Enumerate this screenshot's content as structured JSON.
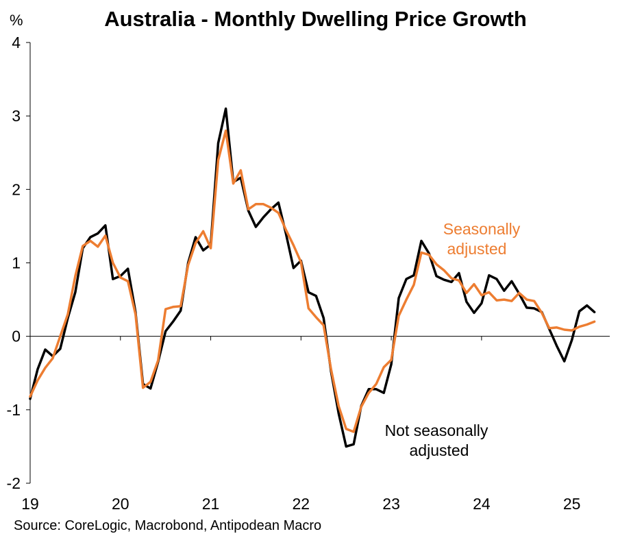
{
  "chart_data": {
    "type": "line",
    "title": "Australia - Monthly Dwelling Price Growth",
    "ylabel": "%",
    "source": "Source: CoreLogic, Macrobond, Antipodean Macro",
    "ylim": [
      -2,
      4
    ],
    "yticks": [
      4,
      3,
      2,
      1,
      0,
      -1,
      -2
    ],
    "ytick_labels": [
      "4",
      "3",
      "2",
      "1",
      "0",
      "-1",
      "-2"
    ],
    "xlim": [
      2019.0,
      2025.42
    ],
    "xticks": [
      2019,
      2020,
      2021,
      2022,
      2023,
      2024,
      2025
    ],
    "xtick_labels": [
      "19",
      "20",
      "21",
      "22",
      "23",
      "24",
      "25"
    ],
    "grid": false,
    "zero_line": true,
    "colors": {
      "nsa": "#000000",
      "sa": "#ED7D31"
    },
    "annotations": {
      "sa": [
        "Seasonally",
        "adjusted"
      ],
      "nsa": [
        "Not seasonally",
        "adjusted"
      ]
    },
    "x": [
      2019.0,
      2019.083,
      2019.167,
      2019.25,
      2019.333,
      2019.417,
      2019.5,
      2019.583,
      2019.667,
      2019.75,
      2019.833,
      2019.917,
      2020.0,
      2020.083,
      2020.167,
      2020.25,
      2020.333,
      2020.417,
      2020.5,
      2020.583,
      2020.667,
      2020.75,
      2020.833,
      2020.917,
      2021.0,
      2021.083,
      2021.167,
      2021.25,
      2021.333,
      2021.417,
      2021.5,
      2021.583,
      2021.667,
      2021.75,
      2021.833,
      2021.917,
      2022.0,
      2022.083,
      2022.167,
      2022.25,
      2022.333,
      2022.417,
      2022.5,
      2022.583,
      2022.667,
      2022.75,
      2022.833,
      2022.917,
      2023.0,
      2023.083,
      2023.167,
      2023.25,
      2023.333,
      2023.417,
      2023.5,
      2023.583,
      2023.667,
      2023.75,
      2023.833,
      2023.917,
      2024.0,
      2024.083,
      2024.167,
      2024.25,
      2024.333,
      2024.417,
      2024.5,
      2024.583,
      2024.667,
      2024.75,
      2024.833,
      2024.917,
      2025.0,
      2025.083,
      2025.167,
      2025.25
    ],
    "series": [
      {
        "key": "nsa",
        "name": "Not seasonally adjusted",
        "values": [
          -0.85,
          -0.45,
          -0.18,
          -0.27,
          -0.17,
          0.25,
          0.6,
          1.2,
          1.35,
          1.4,
          1.51,
          0.78,
          0.82,
          0.92,
          0.33,
          -0.65,
          -0.71,
          -0.35,
          0.07,
          0.2,
          0.35,
          1.0,
          1.35,
          1.17,
          1.25,
          2.63,
          3.1,
          2.1,
          2.16,
          1.71,
          1.49,
          1.62,
          1.73,
          1.82,
          1.4,
          0.93,
          1.03,
          0.6,
          0.55,
          0.25,
          -0.48,
          -1.05,
          -1.5,
          -1.47,
          -0.95,
          -0.72,
          -0.72,
          -0.77,
          -0.38,
          0.52,
          0.78,
          0.83,
          1.3,
          1.13,
          0.82,
          0.77,
          0.74,
          0.86,
          0.47,
          0.32,
          0.45,
          0.83,
          0.78,
          0.62,
          0.75,
          0.58,
          0.39,
          0.38,
          0.33,
          0.1,
          -0.13,
          -0.34,
          -0.05,
          0.34,
          0.42,
          0.33
        ]
      },
      {
        "key": "sa",
        "name": "Seasonally adjusted",
        "values": [
          -0.82,
          -0.6,
          -0.43,
          -0.3,
          0.0,
          0.3,
          0.82,
          1.23,
          1.3,
          1.22,
          1.37,
          1.0,
          0.8,
          0.75,
          0.3,
          -0.7,
          -0.62,
          -0.33,
          0.37,
          0.4,
          0.41,
          0.97,
          1.27,
          1.43,
          1.2,
          2.4,
          2.8,
          2.08,
          2.26,
          1.73,
          1.8,
          1.8,
          1.75,
          1.68,
          1.45,
          1.24,
          1.01,
          0.38,
          0.26,
          0.15,
          -0.45,
          -0.95,
          -1.26,
          -1.3,
          -0.96,
          -0.77,
          -0.65,
          -0.42,
          -0.32,
          0.28,
          0.5,
          0.7,
          1.14,
          1.11,
          0.98,
          0.9,
          0.79,
          0.76,
          0.59,
          0.71,
          0.56,
          0.6,
          0.49,
          0.5,
          0.48,
          0.59,
          0.5,
          0.48,
          0.32,
          0.11,
          0.12,
          0.09,
          0.08,
          0.13,
          0.16,
          0.2
        ]
      }
    ]
  }
}
